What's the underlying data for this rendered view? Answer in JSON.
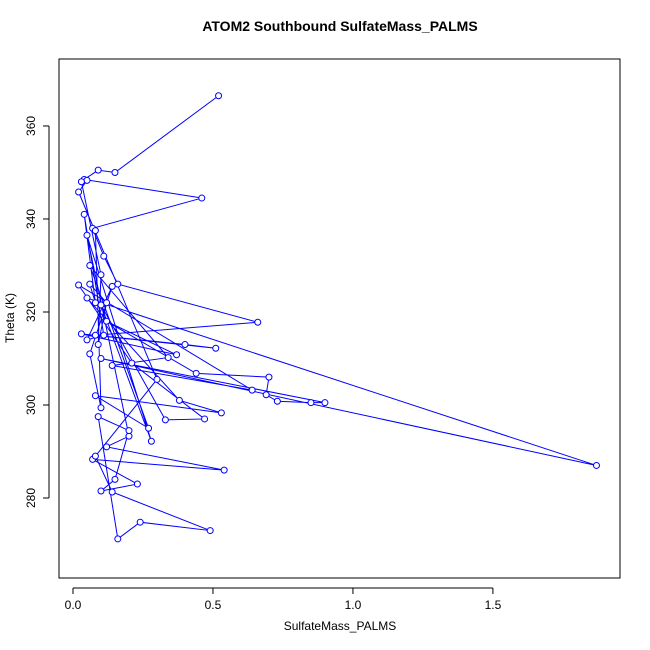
{
  "chart_data": {
    "type": "line",
    "title": "ATOM2 Southbound SulfateMass_PALMS",
    "x_label": "SulfateMass_PALMS",
    "y_label": "Theta (K)",
    "color": "#0000ff",
    "markers": true,
    "x": [
      0.52,
      0.15,
      0.09,
      0.04,
      0.46,
      0.07,
      0.11,
      0.16,
      0.66,
      0.08,
      0.4,
      0.51,
      0.03,
      0.37,
      0.12,
      0.44,
      0.7,
      0.69,
      0.73,
      0.85,
      0.9,
      0.1,
      1.87,
      0.05,
      0.38,
      0.53,
      0.08,
      0.27,
      0.06,
      0.34,
      0.14,
      0.64,
      0.02,
      0.21,
      0.47,
      0.33,
      0.1,
      0.28,
      0.05,
      0.2,
      0.12,
      0.54,
      0.07,
      0.23,
      0.1,
      0.15,
      0.2,
      0.09,
      0.16,
      0.24,
      0.49,
      0.14,
      0.08,
      0.3,
      0.02,
      0.05,
      0.03,
      0.1,
      0.09,
      0.12,
      0.06,
      0.08,
      0.04,
      0.11,
      0.05,
      0.14,
      0.06,
      0.1,
      0.08
    ],
    "values": [
      366.5,
      350,
      350.5,
      348.5,
      344.5,
      338,
      332,
      326,
      317.8,
      315,
      313,
      312.2,
      315.3,
      310.8,
      318,
      306.8,
      306,
      302.2,
      300.8,
      300.5,
      300.5,
      310,
      287,
      323,
      301,
      298.3,
      302,
      295,
      330,
      310.2,
      308.5,
      303.2,
      325.8,
      309,
      297,
      296.8,
      321.5,
      292.2,
      336.5,
      293.3,
      291,
      286,
      288.3,
      283,
      281.5,
      284,
      294.5,
      297.5,
      271.2,
      274.8,
      273,
      281.3,
      289,
      305.5,
      345.8,
      348.3,
      348,
      328,
      313,
      322,
      326,
      322,
      341,
      315,
      314,
      325.5,
      311,
      299.4,
      337.5
    ],
    "xlim": [
      -0.05,
      1.954
    ],
    "ylim": [
      262.8,
      374.4
    ],
    "xticks": [
      {
        "value": 0,
        "label": "0.0"
      },
      0.5,
      {
        "value": 1,
        "label": "1.0"
      },
      1.5
    ],
    "yticks": [
      280,
      300,
      320,
      340,
      360
    ]
  }
}
